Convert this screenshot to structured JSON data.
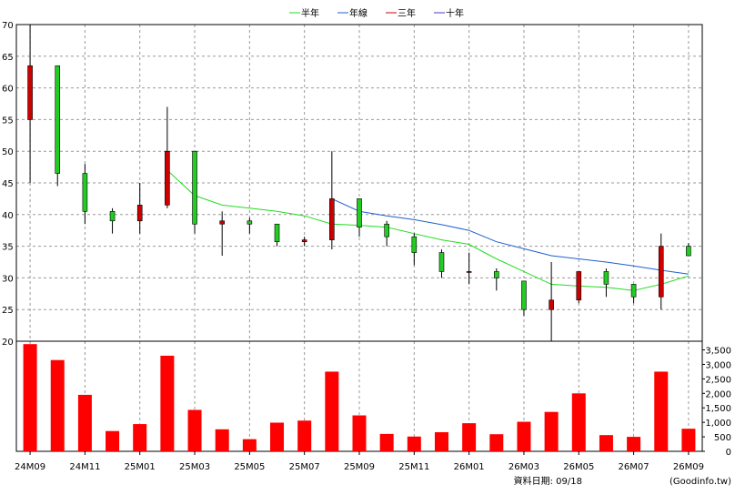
{
  "chart_data": {
    "type": "candlestick",
    "legend": {
      "placement": "top-center",
      "items": [
        {
          "name": "半年",
          "color": "#22dd22"
        },
        {
          "name": "年線",
          "color": "#1f5fcf"
        },
        {
          "name": "三年",
          "color": "#cc0000"
        },
        {
          "name": "十年",
          "color": "#5533cc"
        }
      ]
    },
    "price_axis": {
      "ylim": [
        20,
        70
      ],
      "ticks": [
        "20",
        "25",
        "30",
        "35",
        "40",
        "45",
        "50",
        "55",
        "60",
        "65",
        "70"
      ],
      "position": "left",
      "grid": true
    },
    "volume_axis": {
      "ylim": [
        0,
        3800
      ],
      "ticks": [
        "0",
        "500",
        "1,000",
        "1,500",
        "2,000",
        "2,500",
        "3,000",
        "3,500"
      ],
      "position": "right"
    },
    "x_labels": [
      "24M09",
      "24M11",
      "25M01",
      "25M03",
      "25M05",
      "25M07",
      "25M09",
      "25M11",
      "26M01",
      "26M03",
      "26M05",
      "26M07",
      "26M09"
    ],
    "months": [
      "24M09",
      "24M10",
      "24M11",
      "24M12",
      "25M01",
      "25M02",
      "25M03",
      "25M04",
      "25M05",
      "25M06",
      "25M07",
      "25M08",
      "25M09",
      "25M10",
      "25M11",
      "25M12",
      "26M01",
      "26M02",
      "26M03",
      "26M04",
      "26M05",
      "26M06",
      "26M07",
      "26M08",
      "26M09"
    ],
    "candles": [
      {
        "open": 55.0,
        "high": 70.0,
        "low": 45.0,
        "close": 63.5
      },
      {
        "open": 63.5,
        "high": 63.5,
        "low": 44.5,
        "close": 46.5
      },
      {
        "open": 46.5,
        "high": 48.0,
        "low": 38.5,
        "close": 40.5
      },
      {
        "open": 40.5,
        "high": 41.0,
        "low": 37.0,
        "close": 39.0
      },
      {
        "open": 39.0,
        "high": 45.0,
        "low": 37.0,
        "close": 41.5
      },
      {
        "open": 41.5,
        "high": 57.0,
        "low": 41.0,
        "close": 50.0
      },
      {
        "open": 50.0,
        "high": 50.0,
        "low": 37.0,
        "close": 38.5
      },
      {
        "open": 38.5,
        "high": 40.5,
        "low": 33.5,
        "close": 39.0
      },
      {
        "open": 39.0,
        "high": 39.5,
        "low": 37.0,
        "close": 38.5
      },
      {
        "open": 38.5,
        "high": 38.5,
        "low": 35.0,
        "close": 35.7
      },
      {
        "open": 35.7,
        "high": 36.5,
        "low": 35.0,
        "close": 36.0
      },
      {
        "open": 36.0,
        "high": 50.0,
        "low": 34.5,
        "close": 42.5
      },
      {
        "open": 42.5,
        "high": 42.5,
        "low": 36.5,
        "close": 38.0
      },
      {
        "open": 38.5,
        "high": 39.0,
        "low": 35.0,
        "close": 36.5
      },
      {
        "open": 36.5,
        "high": 37.0,
        "low": 32.0,
        "close": 34.0
      },
      {
        "open": 34.0,
        "high": 34.5,
        "low": 30.0,
        "close": 31.0
      },
      {
        "open": 31.0,
        "high": 34.0,
        "low": 29.0,
        "close": 31.0
      },
      {
        "open": 31.0,
        "high": 31.5,
        "low": 28.0,
        "close": 30.0
      },
      {
        "open": 29.5,
        "high": 29.5,
        "low": 24.0,
        "close": 25.0
      },
      {
        "open": 25.0,
        "high": 32.5,
        "low": 20.0,
        "close": 26.5
      },
      {
        "open": 26.5,
        "high": 31.0,
        "low": 26.0,
        "close": 31.0
      },
      {
        "open": 31.0,
        "high": 31.5,
        "low": 27.0,
        "close": 29.0
      },
      {
        "open": 29.0,
        "high": 29.0,
        "low": 26.0,
        "close": 27.0
      },
      {
        "open": 27.0,
        "high": 37.0,
        "low": 25.0,
        "close": 35.0
      },
      {
        "open": 35.0,
        "high": 35.5,
        "low": 33.5,
        "close": 33.5
      }
    ],
    "ma_half_year": [
      {
        "i": 5,
        "v": 47.0
      },
      {
        "i": 6,
        "v": 43.0
      },
      {
        "i": 7,
        "v": 41.5
      },
      {
        "i": 8,
        "v": 41.0
      },
      {
        "i": 9,
        "v": 40.5
      },
      {
        "i": 10,
        "v": 39.8
      },
      {
        "i": 11,
        "v": 38.5
      },
      {
        "i": 12,
        "v": 38.3
      },
      {
        "i": 13,
        "v": 38.0
      },
      {
        "i": 14,
        "v": 37.0
      },
      {
        "i": 15,
        "v": 36.0
      },
      {
        "i": 16,
        "v": 35.3
      },
      {
        "i": 17,
        "v": 33.0
      },
      {
        "i": 18,
        "v": 31.0
      },
      {
        "i": 19,
        "v": 29.0
      },
      {
        "i": 20,
        "v": 28.7
      },
      {
        "i": 21,
        "v": 28.5
      },
      {
        "i": 22,
        "v": 28.0
      },
      {
        "i": 23,
        "v": 29.0
      },
      {
        "i": 24,
        "v": 30.3
      }
    ],
    "ma_year": [
      {
        "i": 11,
        "v": 42.5
      },
      {
        "i": 12,
        "v": 40.5
      },
      {
        "i": 13,
        "v": 39.8
      },
      {
        "i": 14,
        "v": 39.2
      },
      {
        "i": 15,
        "v": 38.4
      },
      {
        "i": 16,
        "v": 37.5
      },
      {
        "i": 17,
        "v": 35.7
      },
      {
        "i": 18,
        "v": 34.6
      },
      {
        "i": 19,
        "v": 33.5
      },
      {
        "i": 20,
        "v": 33.0
      },
      {
        "i": 21,
        "v": 32.5
      },
      {
        "i": 22,
        "v": 31.9
      },
      {
        "i": 23,
        "v": 31.2
      },
      {
        "i": 24,
        "v": 30.6
      }
    ],
    "volume": [
      3700,
      3150,
      1950,
      700,
      940,
      3300,
      1430,
      760,
      420,
      990,
      1060,
      2750,
      1240,
      600,
      510,
      660,
      970,
      590,
      1020,
      1360,
      2000,
      560,
      500,
      2750,
      780
    ],
    "colors": {
      "up": "#cc0000",
      "down": "#22cc22",
      "volume": "#ff0000",
      "grid": "#999999",
      "background": "#ffffff"
    }
  },
  "footer": {
    "source_label": "資料日期: 09/18",
    "brand": "(Goodinfo.tw)"
  }
}
